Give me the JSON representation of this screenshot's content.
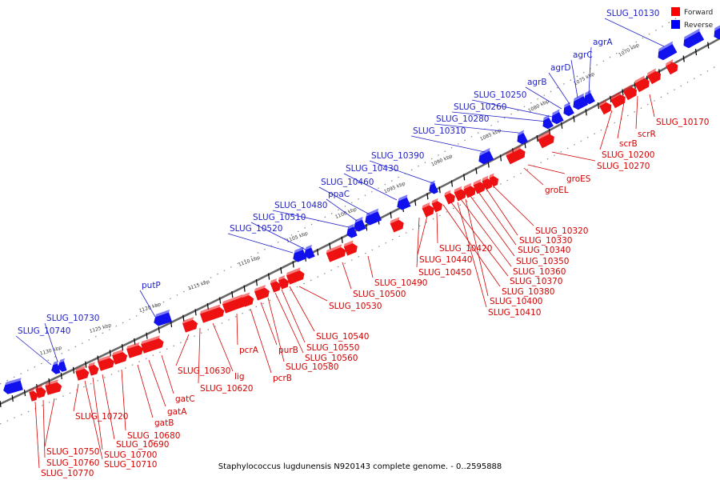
{
  "caption": "Staphylococcus lugdunensis N920143 complete genome. - 0..2595888",
  "legend": [
    {
      "label": "Forward",
      "color": "#ff0000"
    },
    {
      "label": "Reverse",
      "color": "#0000ff"
    }
  ],
  "colors": {
    "forward": "#ee1111",
    "reverse": "#1111ee",
    "forward_label": "#d40000",
    "reverse_label": "#1e1ec8"
  },
  "ticks": [
    "1070 kbp",
    "1075 kbp",
    "1080 kbp",
    "1085 kbp",
    "1090 kbp",
    "1095 kbp",
    "1100 kbp",
    "1105 kbp",
    "1110 kbp",
    "1115 kbp",
    "1120 kbp",
    "1125 kbp",
    "1130 kbp"
  ],
  "forward_labels": [
    "SLUG_10170",
    "scrR",
    "scrB",
    "SLUG_10200",
    "SLUG_10270",
    "groES",
    "groEL",
    "SLUG_10320",
    "SLUG_10330",
    "SLUG_10340",
    "SLUG_10350",
    "SLUG_10360",
    "SLUG_10370",
    "SLUG_10380",
    "SLUG_10400",
    "SLUG_10410",
    "SLUG_10420",
    "SLUG_10440",
    "SLUG_10450",
    "SLUG_10490",
    "SLUG_10500",
    "SLUG_10530",
    "SLUG_10540",
    "SLUG_10550",
    "SLUG_10560",
    "purB",
    "SLUG_10580",
    "pcrB",
    "pcrA",
    "lig",
    "SLUG_10620",
    "SLUG_10630",
    "gatC",
    "gatA",
    "gatB",
    "SLUG_10680",
    "SLUG_10690",
    "SLUG_10700",
    "SLUG_10710",
    "SLUG_10720",
    "SLUG_10750",
    "SLUG_10760",
    "SLUG_10770"
  ],
  "reverse_labels": [
    "SLUG_10130",
    "agrA",
    "agrC",
    "agrD",
    "agrB",
    "SLUG_10250",
    "SLUG_10260",
    "SLUG_10280",
    "SLUG_10310",
    "SLUG_10390",
    "SLUG_10430",
    "SLUG_10460",
    "ppaC",
    "SLUG_10480",
    "SLUG_10510",
    "SLUG_10520",
    "putP",
    "SLUG_10730",
    "SLUG_10740"
  ]
}
